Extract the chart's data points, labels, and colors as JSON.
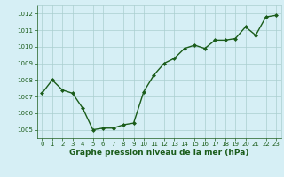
{
  "x": [
    0,
    1,
    2,
    3,
    4,
    5,
    6,
    7,
    8,
    9,
    10,
    11,
    12,
    13,
    14,
    15,
    16,
    17,
    18,
    19,
    20,
    21,
    22,
    23
  ],
  "y": [
    1007.2,
    1008.0,
    1007.4,
    1007.2,
    1006.3,
    1005.0,
    1005.1,
    1005.1,
    1005.3,
    1005.4,
    1007.3,
    1008.3,
    1009.0,
    1009.3,
    1009.9,
    1010.1,
    1009.9,
    1010.4,
    1010.4,
    1010.5,
    1011.2,
    1010.7,
    1011.8,
    1011.9
  ],
  "ylim": [
    1004.5,
    1012.5
  ],
  "yticks": [
    1005,
    1006,
    1007,
    1008,
    1009,
    1010,
    1011,
    1012
  ],
  "xticks": [
    0,
    1,
    2,
    3,
    4,
    5,
    6,
    7,
    8,
    9,
    10,
    11,
    12,
    13,
    14,
    15,
    16,
    17,
    18,
    19,
    20,
    21,
    22,
    23
  ],
  "xlabel": "Graphe pression niveau de la mer (hPa)",
  "line_color": "#1a5c1a",
  "marker": "D",
  "marker_size": 2.0,
  "bg_color": "#d6eff5",
  "grid_color": "#aacfcf",
  "axis_label_color": "#1a5c1a",
  "tick_label_color": "#1a5c1a",
  "line_width": 1.0,
  "tick_fontsize": 5.0,
  "xlabel_fontsize": 6.5
}
